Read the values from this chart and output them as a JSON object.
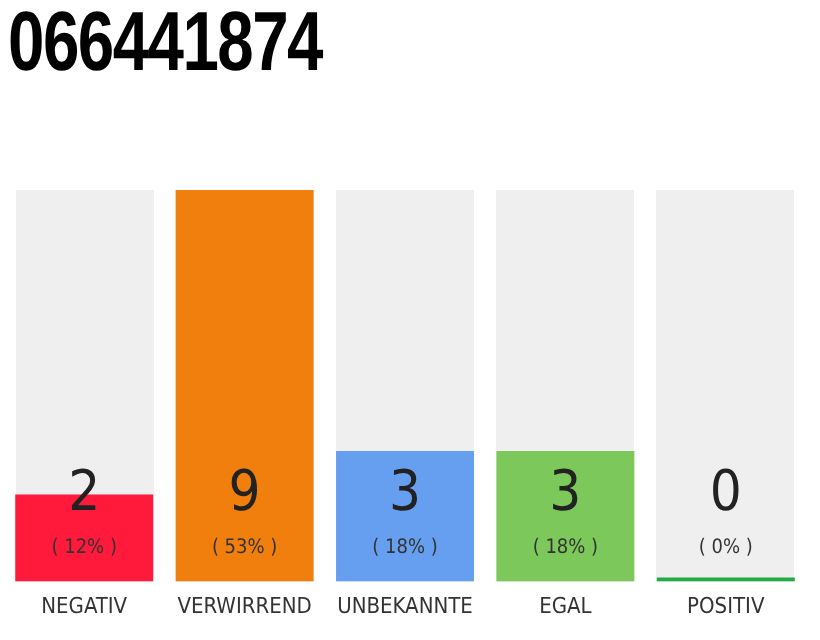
{
  "chart_data": {
    "type": "bar",
    "title": "066441874",
    "categories": [
      "NEGATIV",
      "VERWIRREND",
      "UNBEKANNTE",
      "EGAL",
      "POSITIV"
    ],
    "values": [
      2,
      9,
      3,
      3,
      0
    ],
    "colors": [
      "#ff1a3c",
      "#f07f0e",
      "#679ff0",
      "#7cc85a",
      "#22aa44"
    ],
    "ylim": [
      0,
      9
    ],
    "data_labels": true,
    "annotations": [
      "( 12% )",
      "( 53% )",
      "( 18% )",
      "( 18% )",
      "( 0% )"
    ],
    "grid": false,
    "legend": false
  }
}
